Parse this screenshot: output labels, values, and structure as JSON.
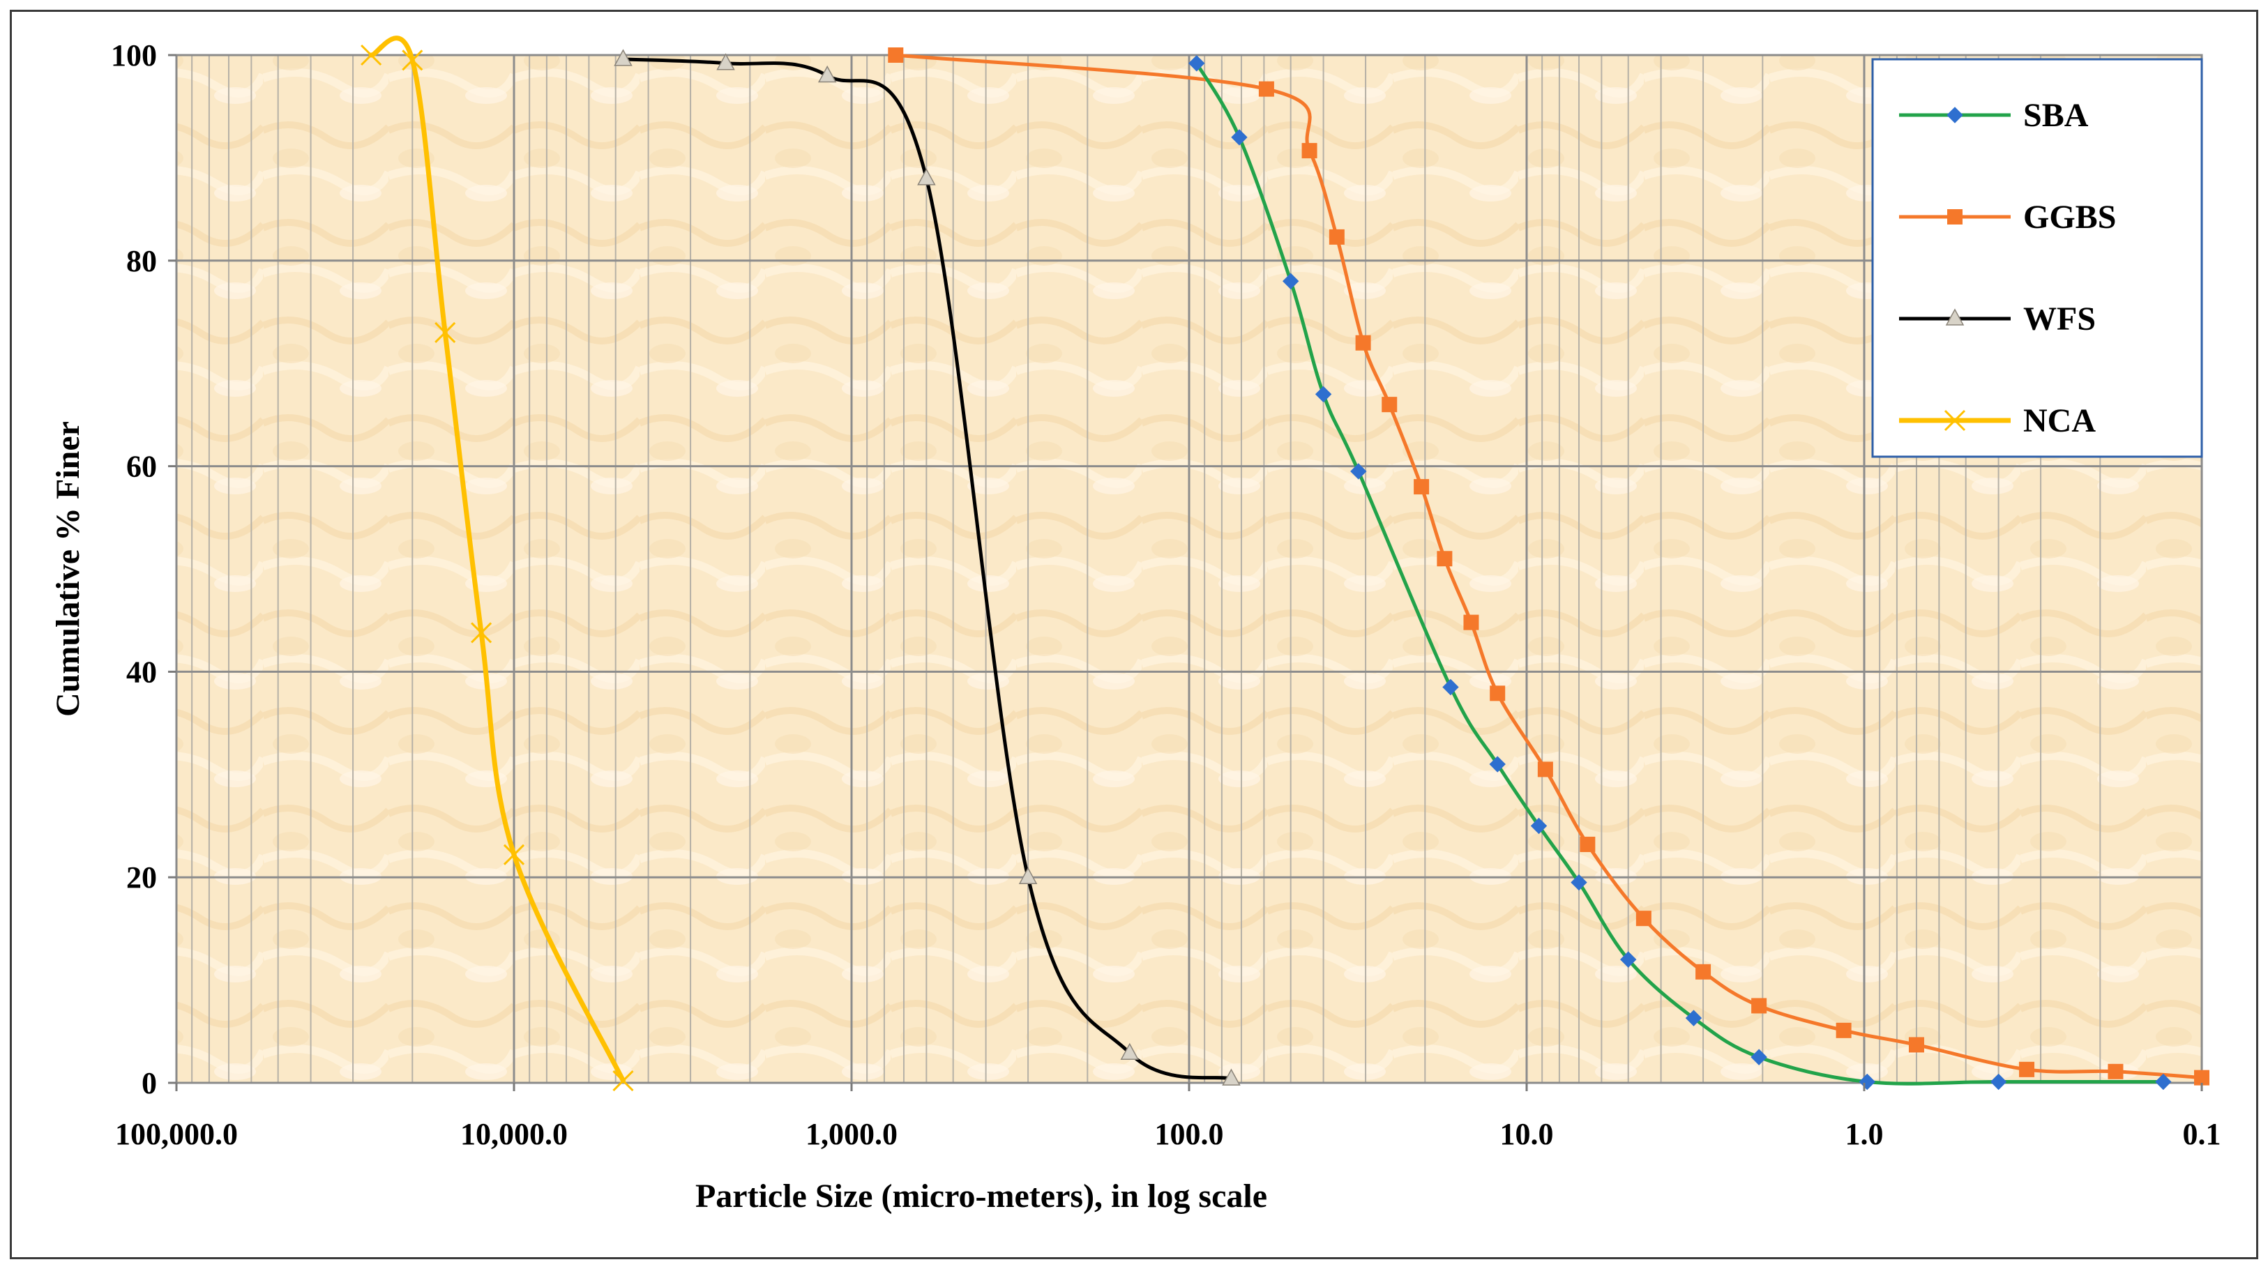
{
  "chart_data": {
    "type": "line",
    "title": "",
    "xlabel": "Particle Size (micro-meters), in log scale",
    "ylabel": "Cumulative % Finer",
    "x_scale": "log",
    "x_reversed": true,
    "xlim": [
      100000,
      0.1
    ],
    "ylim": [
      0,
      100
    ],
    "x_ticks": [
      100000,
      10000,
      1000,
      100,
      10,
      1,
      0.1
    ],
    "x_tick_labels": [
      "100,000.0",
      "10,000.0",
      "1,000.0",
      "100.0",
      "10.0",
      "1.0",
      "0.1"
    ],
    "y_ticks": [
      0,
      20,
      40,
      60,
      80,
      100
    ],
    "y_tick_labels": [
      "0",
      "20",
      "40",
      "60",
      "80",
      "100"
    ],
    "grid": true,
    "legend_position": "top-right",
    "series": [
      {
        "name": "SBA",
        "color": "#22a34a",
        "marker": "diamond",
        "marker_color": "#2e6fcf",
        "x": [
          95,
          71,
          50,
          40,
          31.5,
          16.8,
          12.2,
          9.2,
          7,
          5,
          3.2,
          2.05,
          0.98,
          0.4,
          0.13
        ],
        "y": [
          99.2,
          92,
          78,
          67,
          59.5,
          38.5,
          31,
          25,
          19.5,
          12,
          6.3,
          2.5,
          0.1,
          0.1,
          0.1
        ]
      },
      {
        "name": "GGBS",
        "color": "#f5782a",
        "marker": "square",
        "marker_color": "#f5782a",
        "x": [
          740,
          59,
          44,
          36.5,
          30.5,
          25.5,
          20.5,
          17.5,
          14.6,
          12.2,
          8.8,
          6.6,
          4.5,
          3,
          2.05,
          1.15,
          0.7,
          0.33,
          0.18,
          0.1
        ],
        "y": [
          100,
          96.7,
          90.7,
          82.3,
          72,
          66,
          58,
          51,
          44.8,
          37.9,
          30.5,
          23.2,
          16,
          10.8,
          7.5,
          5.1,
          3.7,
          1.3,
          1.1,
          0.5
        ]
      },
      {
        "name": "WFS",
        "color": "#000000",
        "marker": "triangle",
        "marker_color": "#d8d3c8",
        "x": [
          4750,
          2360,
          1180,
          600,
          300,
          150,
          75
        ],
        "y": [
          99.6,
          99.2,
          98,
          88,
          20,
          2.9,
          0.4
        ]
      },
      {
        "name": "NCA",
        "color": "#ffc000",
        "marker": "x",
        "marker_color": "#ffc000",
        "x": [
          26500,
          20000,
          16000,
          12500,
          10000,
          4750
        ],
        "y": [
          100,
          99.5,
          73,
          43.8,
          22.2,
          0.2
        ]
      }
    ]
  }
}
